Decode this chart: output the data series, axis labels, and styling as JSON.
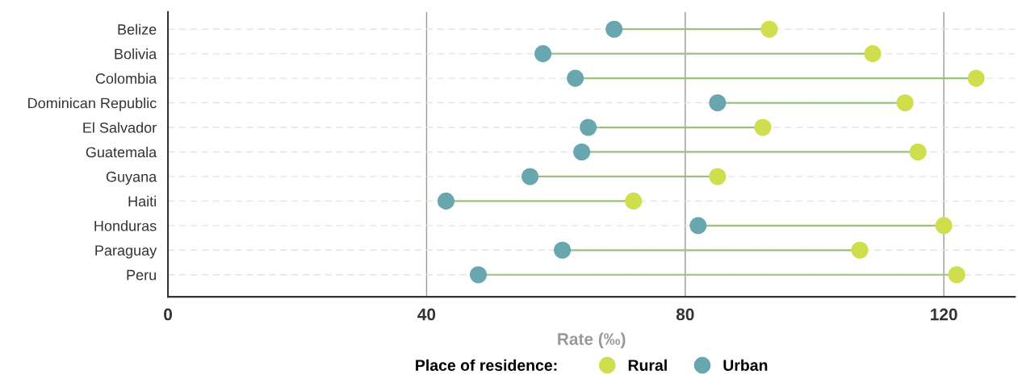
{
  "chart_data": {
    "type": "scatter",
    "orientation": "horizontal",
    "xlabel": "Rate (‰)",
    "legend_title": "Place of residence:",
    "legend": "bottom",
    "grid": true,
    "marker": "circle",
    "categories": [
      "Belize",
      "Bolivia",
      "Colombia",
      "Dominican Republic",
      "El Salvador",
      "Guatemala",
      "Guyana",
      "Haiti",
      "Honduras",
      "Paraguay",
      "Peru"
    ],
    "xlim": [
      0,
      131
    ],
    "xticks": [
      0,
      40,
      80,
      120
    ],
    "series": [
      {
        "name": "Rural",
        "color": "#cfde4c",
        "values": [
          93,
          109,
          125,
          114,
          92,
          116,
          85,
          72,
          120,
          107,
          122
        ]
      },
      {
        "name": "Urban",
        "color": "#68a7af",
        "values": [
          69,
          58,
          63,
          85,
          65,
          64,
          56,
          43,
          82,
          61,
          48
        ]
      }
    ]
  }
}
